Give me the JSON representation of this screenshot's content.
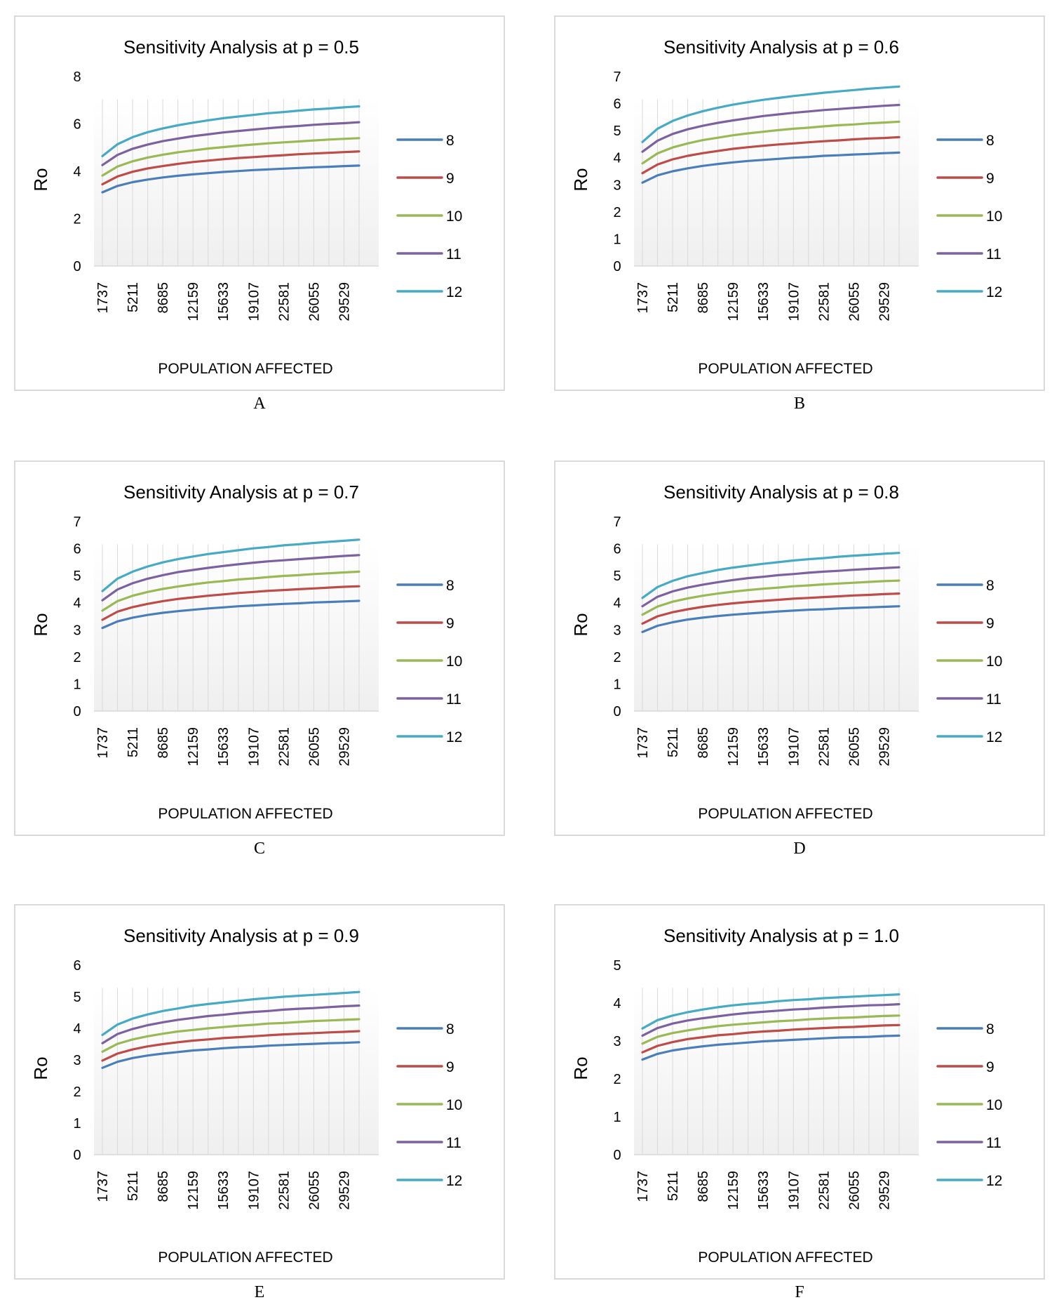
{
  "figure": {
    "panels": [
      "A",
      "B",
      "C",
      "D",
      "E",
      "F"
    ]
  },
  "chart_data": [
    {
      "id": "A",
      "caption": "A",
      "type": "line",
      "title": "Sensitivity Analysis at p = 0.5",
      "xlabel": "POPULATION AFFECTED",
      "ylabel": "Ro",
      "ylim": [
        0,
        8
      ],
      "yticks": [
        0,
        2,
        4,
        6,
        8
      ],
      "grid": "vertical",
      "legend": "right",
      "x": [
        1737,
        3474,
        5211,
        6948,
        8685,
        10422,
        12159,
        13896,
        15633,
        17370,
        19107,
        20844,
        22581,
        24318,
        26055,
        27792,
        29529,
        31266
      ],
      "xtick_labels": [
        "1737",
        "5211",
        "8685",
        "12159",
        "15633",
        "19107",
        "22581",
        "26055",
        "29529"
      ],
      "series": [
        {
          "name": "8",
          "color": "#4a7ebb",
          "values": [
            3.11,
            3.38,
            3.54,
            3.65,
            3.74,
            3.81,
            3.87,
            3.92,
            3.97,
            4.01,
            4.05,
            4.08,
            4.11,
            4.14,
            4.17,
            4.19,
            4.22,
            4.24
          ]
        },
        {
          "name": "9",
          "color": "#be4b48",
          "values": [
            3.45,
            3.78,
            3.98,
            4.12,
            4.22,
            4.31,
            4.39,
            4.45,
            4.51,
            4.56,
            4.6,
            4.64,
            4.68,
            4.72,
            4.75,
            4.78,
            4.81,
            4.84
          ]
        },
        {
          "name": "10",
          "color": "#98b954",
          "values": [
            3.82,
            4.2,
            4.42,
            4.58,
            4.7,
            4.8,
            4.88,
            4.96,
            5.02,
            5.08,
            5.13,
            5.18,
            5.22,
            5.26,
            5.3,
            5.34,
            5.37,
            5.4
          ]
        },
        {
          "name": "11",
          "color": "#7d60a0",
          "values": [
            4.26,
            4.69,
            4.95,
            5.13,
            5.27,
            5.38,
            5.48,
            5.56,
            5.64,
            5.7,
            5.76,
            5.82,
            5.87,
            5.91,
            5.96,
            6.0,
            6.03,
            6.07
          ]
        },
        {
          "name": "12",
          "color": "#46aac5",
          "values": [
            4.64,
            5.14,
            5.44,
            5.65,
            5.81,
            5.94,
            6.05,
            6.15,
            6.24,
            6.31,
            6.38,
            6.45,
            6.5,
            6.56,
            6.61,
            6.65,
            6.7,
            6.74
          ]
        }
      ]
    },
    {
      "id": "B",
      "caption": "B",
      "type": "line",
      "title": "Sensitivity Analysis at p = 0.6",
      "xlabel": "POPULATION AFFECTED",
      "ylabel": "Ro",
      "ylim": [
        0,
        7
      ],
      "yticks": [
        0,
        1,
        2,
        3,
        4,
        5,
        6,
        7
      ],
      "grid": "vertical",
      "legend": "right",
      "x": [
        1737,
        3474,
        5211,
        6948,
        8685,
        10422,
        12159,
        13896,
        15633,
        17370,
        19107,
        20844,
        22581,
        24318,
        26055,
        27792,
        29529,
        31266
      ],
      "xtick_labels": [
        "1737",
        "5211",
        "8685",
        "12159",
        "15633",
        "19107",
        "22581",
        "26055",
        "29529"
      ],
      "series": [
        {
          "name": "8",
          "color": "#4a7ebb",
          "values": [
            3.08,
            3.35,
            3.5,
            3.61,
            3.7,
            3.77,
            3.83,
            3.88,
            3.92,
            3.96,
            4.0,
            4.03,
            4.07,
            4.09,
            4.12,
            4.14,
            4.17,
            4.19
          ]
        },
        {
          "name": "9",
          "color": "#be4b48",
          "values": [
            3.43,
            3.75,
            3.94,
            4.07,
            4.17,
            4.25,
            4.33,
            4.39,
            4.44,
            4.49,
            4.53,
            4.57,
            4.61,
            4.64,
            4.68,
            4.71,
            4.73,
            4.76
          ]
        },
        {
          "name": "10",
          "color": "#98b954",
          "values": [
            3.79,
            4.16,
            4.38,
            4.53,
            4.65,
            4.74,
            4.83,
            4.9,
            4.96,
            5.02,
            5.07,
            5.11,
            5.16,
            5.2,
            5.23,
            5.27,
            5.3,
            5.33
          ]
        },
        {
          "name": "11",
          "color": "#7d60a0",
          "values": [
            4.22,
            4.63,
            4.88,
            5.05,
            5.18,
            5.29,
            5.38,
            5.46,
            5.54,
            5.6,
            5.66,
            5.71,
            5.76,
            5.8,
            5.84,
            5.88,
            5.92,
            5.95
          ]
        },
        {
          "name": "12",
          "color": "#46aac5",
          "values": [
            4.58,
            5.07,
            5.36,
            5.56,
            5.72,
            5.85,
            5.96,
            6.05,
            6.14,
            6.21,
            6.28,
            6.34,
            6.4,
            6.45,
            6.5,
            6.55,
            6.59,
            6.63
          ]
        }
      ]
    },
    {
      "id": "C",
      "caption": "C",
      "type": "line",
      "title": "Sensitivity Analysis at p = 0.7",
      "xlabel": "POPULATION AFFECTED",
      "ylabel": "Ro",
      "ylim": [
        0,
        7
      ],
      "yticks": [
        0,
        1,
        2,
        3,
        4,
        5,
        6,
        7
      ],
      "grid": "vertical",
      "legend": "right",
      "x": [
        1737,
        3474,
        5211,
        6948,
        8685,
        10422,
        12159,
        13896,
        15633,
        17370,
        19107,
        20844,
        22581,
        24318,
        26055,
        27792,
        29529,
        31266
      ],
      "xtick_labels": [
        "1737",
        "5211",
        "8685",
        "12159",
        "15633",
        "19107",
        "22581",
        "26055",
        "29529"
      ],
      "series": [
        {
          "name": "8",
          "color": "#4a7ebb",
          "values": [
            3.07,
            3.31,
            3.45,
            3.55,
            3.63,
            3.69,
            3.74,
            3.79,
            3.83,
            3.87,
            3.9,
            3.93,
            3.96,
            3.98,
            4.01,
            4.03,
            4.05,
            4.07
          ]
        },
        {
          "name": "9",
          "color": "#be4b48",
          "values": [
            3.37,
            3.67,
            3.84,
            3.96,
            4.06,
            4.14,
            4.2,
            4.26,
            4.31,
            4.36,
            4.4,
            4.44,
            4.47,
            4.5,
            4.53,
            4.56,
            4.59,
            4.61
          ]
        },
        {
          "name": "10",
          "color": "#98b954",
          "values": [
            3.71,
            4.06,
            4.26,
            4.4,
            4.51,
            4.6,
            4.68,
            4.75,
            4.8,
            4.86,
            4.9,
            4.95,
            4.99,
            5.02,
            5.06,
            5.09,
            5.12,
            5.15
          ]
        },
        {
          "name": "11",
          "color": "#7d60a0",
          "values": [
            4.09,
            4.49,
            4.72,
            4.89,
            5.02,
            5.13,
            5.21,
            5.29,
            5.36,
            5.42,
            5.48,
            5.53,
            5.57,
            5.61,
            5.65,
            5.69,
            5.73,
            5.76
          ]
        },
        {
          "name": "12",
          "color": "#46aac5",
          "values": [
            4.43,
            4.89,
            5.15,
            5.34,
            5.49,
            5.61,
            5.71,
            5.8,
            5.87,
            5.94,
            6.01,
            6.06,
            6.12,
            6.16,
            6.21,
            6.25,
            6.29,
            6.33
          ]
        }
      ]
    },
    {
      "id": "D",
      "caption": "D",
      "type": "line",
      "title": "Sensitivity Analysis at p = 0.8",
      "xlabel": "POPULATION AFFECTED",
      "ylabel": "Ro",
      "ylim": [
        0,
        7
      ],
      "yticks": [
        0,
        1,
        2,
        3,
        4,
        5,
        6,
        7
      ],
      "grid": "vertical",
      "legend": "right",
      "x": [
        1737,
        3474,
        5211,
        6948,
        8685,
        10422,
        12159,
        13896,
        15633,
        17370,
        19107,
        20844,
        22581,
        24318,
        26055,
        27792,
        29529,
        31266
      ],
      "xtick_labels": [
        "1737",
        "5211",
        "8685",
        "12159",
        "15633",
        "19107",
        "22581",
        "26055",
        "29529"
      ],
      "series": [
        {
          "name": "8",
          "color": "#4a7ebb",
          "values": [
            2.92,
            3.15,
            3.28,
            3.38,
            3.45,
            3.51,
            3.56,
            3.6,
            3.64,
            3.68,
            3.71,
            3.74,
            3.76,
            3.79,
            3.81,
            3.83,
            3.85,
            3.87
          ]
        },
        {
          "name": "9",
          "color": "#be4b48",
          "values": [
            3.23,
            3.5,
            3.65,
            3.76,
            3.85,
            3.92,
            3.98,
            4.03,
            4.07,
            4.11,
            4.15,
            4.18,
            4.21,
            4.24,
            4.27,
            4.29,
            4.32,
            4.34
          ]
        },
        {
          "name": "10",
          "color": "#98b954",
          "values": [
            3.56,
            3.86,
            4.04,
            4.16,
            4.26,
            4.34,
            4.41,
            4.47,
            4.52,
            4.56,
            4.61,
            4.64,
            4.68,
            4.71,
            4.74,
            4.77,
            4.8,
            4.82
          ]
        },
        {
          "name": "11",
          "color": "#7d60a0",
          "values": [
            3.87,
            4.22,
            4.42,
            4.56,
            4.67,
            4.76,
            4.84,
            4.91,
            4.96,
            5.02,
            5.06,
            5.11,
            5.15,
            5.18,
            5.22,
            5.25,
            5.28,
            5.31
          ]
        },
        {
          "name": "12",
          "color": "#46aac5",
          "values": [
            4.18,
            4.58,
            4.81,
            4.98,
            5.1,
            5.21,
            5.3,
            5.37,
            5.44,
            5.5,
            5.56,
            5.61,
            5.65,
            5.7,
            5.74,
            5.77,
            5.81,
            5.84
          ]
        }
      ]
    },
    {
      "id": "E",
      "caption": "E",
      "type": "line",
      "title": "Sensitivity Analysis at p = 0.9",
      "xlabel": "POPULATION AFFECTED",
      "ylabel": "Ro",
      "ylim": [
        0,
        6
      ],
      "yticks": [
        0,
        1,
        2,
        3,
        4,
        5,
        6
      ],
      "grid": "vertical",
      "legend": "right",
      "x": [
        1737,
        3474,
        5211,
        6948,
        8685,
        10422,
        12159,
        13896,
        15633,
        17370,
        19107,
        20844,
        22581,
        24318,
        26055,
        27792,
        29529,
        31266
      ],
      "xtick_labels": [
        "1737",
        "5211",
        "8685",
        "12159",
        "15633",
        "19107",
        "22581",
        "26055",
        "29529"
      ],
      "series": [
        {
          "name": "8",
          "color": "#4a7ebb",
          "values": [
            2.75,
            2.94,
            3.06,
            3.14,
            3.2,
            3.25,
            3.3,
            3.33,
            3.37,
            3.4,
            3.42,
            3.45,
            3.47,
            3.49,
            3.51,
            3.53,
            3.54,
            3.56
          ]
        },
        {
          "name": "9",
          "color": "#be4b48",
          "values": [
            2.98,
            3.2,
            3.33,
            3.43,
            3.5,
            3.56,
            3.61,
            3.65,
            3.69,
            3.72,
            3.75,
            3.78,
            3.81,
            3.83,
            3.85,
            3.87,
            3.89,
            3.91
          ]
        },
        {
          "name": "10",
          "color": "#98b954",
          "values": [
            3.26,
            3.51,
            3.65,
            3.75,
            3.83,
            3.9,
            3.95,
            4.0,
            4.04,
            4.08,
            4.11,
            4.15,
            4.17,
            4.2,
            4.23,
            4.25,
            4.27,
            4.29
          ]
        },
        {
          "name": "11",
          "color": "#7d60a0",
          "values": [
            3.53,
            3.82,
            3.98,
            4.1,
            4.19,
            4.27,
            4.33,
            4.39,
            4.43,
            4.48,
            4.52,
            4.55,
            4.59,
            4.62,
            4.64,
            4.67,
            4.7,
            4.72
          ]
        },
        {
          "name": "12",
          "color": "#46aac5",
          "values": [
            3.79,
            4.12,
            4.31,
            4.44,
            4.55,
            4.63,
            4.71,
            4.77,
            4.82,
            4.87,
            4.92,
            4.96,
            5.0,
            5.03,
            5.06,
            5.09,
            5.12,
            5.15
          ]
        }
      ]
    },
    {
      "id": "F",
      "caption": "F",
      "type": "line",
      "title": "Sensitivity Analysis at p = 1.0",
      "xlabel": "POPULATION AFFECTED",
      "ylabel": "Ro",
      "ylim": [
        0,
        5
      ],
      "yticks": [
        0,
        1,
        2,
        3,
        4,
        5
      ],
      "grid": "vertical",
      "legend": "right",
      "x": [
        1737,
        3474,
        5211,
        6948,
        8685,
        10422,
        12159,
        13896,
        15633,
        17370,
        19107,
        20844,
        22581,
        24318,
        26055,
        27792,
        29529,
        31266
      ],
      "xtick_labels": [
        "1737",
        "5211",
        "8685",
        "12159",
        "15633",
        "19107",
        "22581",
        "26055",
        "29529"
      ],
      "series": [
        {
          "name": "8",
          "color": "#4a7ebb",
          "values": [
            2.51,
            2.66,
            2.75,
            2.81,
            2.86,
            2.9,
            2.93,
            2.96,
            2.99,
            3.01,
            3.03,
            3.05,
            3.07,
            3.09,
            3.1,
            3.11,
            3.13,
            3.14
          ]
        },
        {
          "name": "9",
          "color": "#be4b48",
          "values": [
            2.7,
            2.87,
            2.97,
            3.05,
            3.1,
            3.15,
            3.18,
            3.22,
            3.25,
            3.27,
            3.3,
            3.32,
            3.34,
            3.36,
            3.37,
            3.39,
            3.41,
            3.42
          ]
        },
        {
          "name": "10",
          "color": "#98b954",
          "values": [
            2.93,
            3.11,
            3.21,
            3.28,
            3.34,
            3.39,
            3.43,
            3.46,
            3.49,
            3.52,
            3.54,
            3.57,
            3.59,
            3.61,
            3.62,
            3.64,
            3.66,
            3.67
          ]
        },
        {
          "name": "11",
          "color": "#7d60a0",
          "values": [
            3.14,
            3.34,
            3.46,
            3.54,
            3.6,
            3.65,
            3.7,
            3.74,
            3.77,
            3.8,
            3.83,
            3.85,
            3.88,
            3.9,
            3.92,
            3.94,
            3.95,
            3.97
          ]
        },
        {
          "name": "12",
          "color": "#46aac5",
          "values": [
            3.33,
            3.55,
            3.67,
            3.76,
            3.83,
            3.89,
            3.94,
            3.98,
            4.01,
            4.05,
            4.08,
            4.1,
            4.13,
            4.15,
            4.17,
            4.19,
            4.21,
            4.23
          ]
        }
      ]
    }
  ]
}
